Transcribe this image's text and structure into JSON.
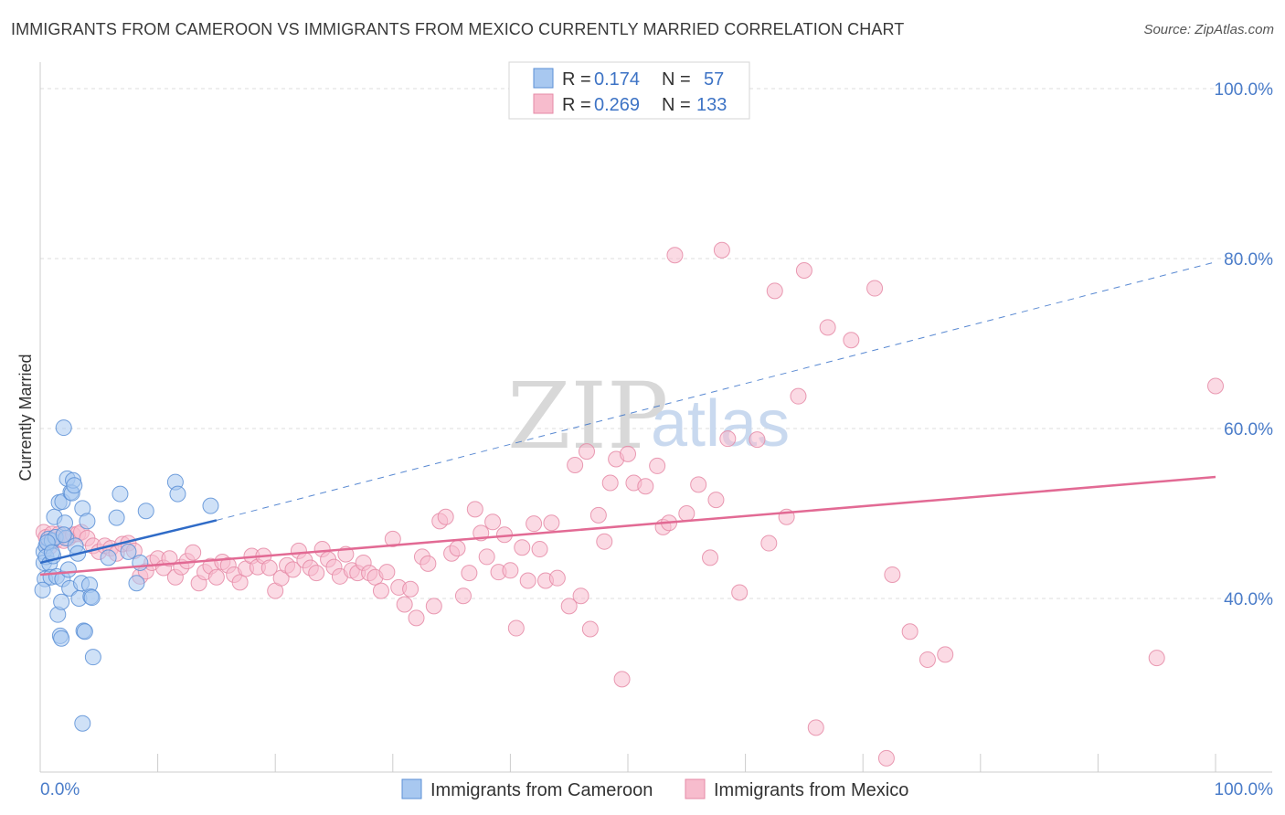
{
  "title": "IMMIGRANTS FROM CAMEROON VS IMMIGRANTS FROM MEXICO CURRENTLY MARRIED CORRELATION CHART",
  "source": "Source: ZipAtlas.com",
  "watermark": {
    "zip": "ZIP",
    "atlas": "atlas"
  },
  "legend": {
    "r_label": "R =",
    "n_label": "N =",
    "rows": [
      {
        "r": "0.174",
        "n": "57"
      },
      {
        "r": "0.269",
        "n": "133"
      }
    ]
  },
  "chart_data": {
    "type": "scatter",
    "ylabel": "Currently Married",
    "xlabel": "",
    "xlim": [
      0,
      100
    ],
    "ylim": [
      20,
      100
    ],
    "x_tick_labels": [
      "0.0%",
      "100.0%"
    ],
    "y_tick_labels": [
      "40.0%",
      "60.0%",
      "80.0%",
      "100.0%"
    ],
    "y_ticks": [
      40,
      60,
      80,
      100
    ],
    "grid": true,
    "legend_position": "top-center",
    "colors": {
      "cameroon_fill": "#a8c8f0",
      "cameroon_stroke": "#5b8fd6",
      "cameroon_line": "#2f6bc7",
      "mexico_fill": "#f7bccd",
      "mexico_stroke": "#e58aa6",
      "mexico_line": "#e26a94"
    },
    "series": [
      {
        "name": "Immigrants from Cameroon",
        "trend": {
          "x0": 0,
          "y0": 44.2,
          "x1": 15,
          "y1": 49.2,
          "dash_to": {
            "x": 100,
            "y": 79.6
          }
        },
        "points": [
          [
            0.3,
            45.5
          ],
          [
            0.3,
            44.2
          ],
          [
            0.4,
            42.3
          ],
          [
            0.5,
            46.2
          ],
          [
            0.5,
            44.9
          ],
          [
            0.7,
            47.0
          ],
          [
            0.8,
            44.1
          ],
          [
            0.9,
            42.5
          ],
          [
            1.0,
            46.8
          ],
          [
            1.1,
            45.0
          ],
          [
            1.2,
            49.6
          ],
          [
            1.3,
            47.2
          ],
          [
            1.4,
            42.6
          ],
          [
            1.5,
            38.1
          ],
          [
            1.6,
            51.3
          ],
          [
            1.7,
            35.6
          ],
          [
            1.8,
            35.3
          ],
          [
            1.8,
            39.6
          ],
          [
            1.9,
            42.3
          ],
          [
            1.9,
            51.4
          ],
          [
            2.0,
            60.1
          ],
          [
            2.1,
            48.9
          ],
          [
            2.2,
            47.1
          ],
          [
            2.3,
            54.1
          ],
          [
            2.4,
            43.4
          ],
          [
            2.5,
            41.2
          ],
          [
            2.6,
            52.5
          ],
          [
            2.7,
            52.4
          ],
          [
            2.8,
            53.9
          ],
          [
            2.9,
            53.3
          ],
          [
            3.0,
            46.2
          ],
          [
            3.2,
            45.3
          ],
          [
            3.3,
            40.0
          ],
          [
            3.5,
            41.8
          ],
          [
            3.6,
            50.6
          ],
          [
            3.7,
            36.2
          ],
          [
            3.8,
            36.1
          ],
          [
            4.0,
            49.1
          ],
          [
            4.2,
            41.6
          ],
          [
            4.3,
            40.2
          ],
          [
            4.4,
            40.1
          ],
          [
            4.5,
            33.1
          ],
          [
            3.6,
            25.3
          ],
          [
            5.8,
            44.8
          ],
          [
            6.5,
            49.5
          ],
          [
            6.8,
            52.3
          ],
          [
            7.5,
            45.5
          ],
          [
            8.2,
            41.8
          ],
          [
            8.5,
            44.2
          ],
          [
            9.0,
            50.3
          ],
          [
            11.5,
            53.7
          ],
          [
            11.7,
            52.3
          ],
          [
            14.5,
            50.9
          ],
          [
            0.2,
            41.0
          ],
          [
            0.6,
            46.6
          ],
          [
            1.0,
            45.4
          ],
          [
            2.0,
            47.5
          ]
        ]
      },
      {
        "name": "Immigrants from Mexico",
        "trend": {
          "x0": 0,
          "y0": 42.8,
          "x1": 100,
          "y1": 54.3
        },
        "points": [
          [
            0.3,
            47.8
          ],
          [
            0.5,
            47.2
          ],
          [
            0.8,
            46.1
          ],
          [
            1.0,
            47.6
          ],
          [
            1.4,
            46.9
          ],
          [
            1.6,
            47.6
          ],
          [
            2.0,
            46.8
          ],
          [
            2.4,
            47.1
          ],
          [
            2.8,
            47.5
          ],
          [
            3.2,
            47.6
          ],
          [
            3.5,
            47.8
          ],
          [
            4.0,
            47.1
          ],
          [
            4.5,
            46.2
          ],
          [
            5.0,
            45.5
          ],
          [
            5.5,
            46.2
          ],
          [
            6.0,
            45.9
          ],
          [
            6.5,
            45.3
          ],
          [
            7.0,
            46.4
          ],
          [
            7.5,
            46.5
          ],
          [
            8.0,
            45.6
          ],
          [
            8.5,
            42.6
          ],
          [
            9.0,
            43.2
          ],
          [
            9.5,
            44.2
          ],
          [
            10.0,
            44.7
          ],
          [
            10.5,
            43.6
          ],
          [
            11.0,
            44.7
          ],
          [
            11.5,
            42.5
          ],
          [
            12.0,
            43.7
          ],
          [
            12.5,
            44.4
          ],
          [
            13.0,
            45.4
          ],
          [
            13.5,
            41.8
          ],
          [
            14.0,
            43.1
          ],
          [
            14.5,
            43.8
          ],
          [
            15.0,
            42.5
          ],
          [
            15.5,
            44.3
          ],
          [
            16.0,
            43.9
          ],
          [
            16.5,
            42.8
          ],
          [
            17.0,
            41.9
          ],
          [
            17.5,
            43.5
          ],
          [
            18.0,
            45.0
          ],
          [
            18.5,
            43.7
          ],
          [
            19.0,
            45.0
          ],
          [
            19.5,
            43.6
          ],
          [
            20.0,
            40.9
          ],
          [
            20.5,
            42.4
          ],
          [
            21.0,
            43.9
          ],
          [
            21.5,
            43.4
          ],
          [
            22.0,
            45.6
          ],
          [
            22.5,
            44.5
          ],
          [
            23.0,
            43.6
          ],
          [
            23.5,
            43.0
          ],
          [
            24.0,
            45.8
          ],
          [
            24.5,
            44.6
          ],
          [
            25.0,
            43.7
          ],
          [
            25.5,
            42.6
          ],
          [
            26.0,
            45.2
          ],
          [
            26.5,
            43.3
          ],
          [
            27.0,
            43.0
          ],
          [
            27.5,
            44.2
          ],
          [
            28.0,
            43.0
          ],
          [
            28.5,
            42.5
          ],
          [
            29.0,
            40.9
          ],
          [
            29.5,
            43.1
          ],
          [
            30.0,
            47.0
          ],
          [
            30.5,
            41.3
          ],
          [
            31.0,
            39.3
          ],
          [
            31.5,
            41.1
          ],
          [
            32.0,
            37.7
          ],
          [
            32.5,
            44.9
          ],
          [
            33.0,
            44.1
          ],
          [
            33.5,
            39.1
          ],
          [
            34.0,
            49.1
          ],
          [
            34.5,
            49.6
          ],
          [
            35.0,
            45.3
          ],
          [
            35.5,
            45.9
          ],
          [
            36.0,
            40.3
          ],
          [
            36.5,
            43.0
          ],
          [
            37.0,
            50.5
          ],
          [
            37.5,
            47.7
          ],
          [
            38.0,
            44.9
          ],
          [
            38.5,
            49.0
          ],
          [
            39.0,
            43.1
          ],
          [
            39.5,
            47.5
          ],
          [
            40.0,
            43.3
          ],
          [
            40.5,
            36.5
          ],
          [
            41.0,
            46.0
          ],
          [
            41.5,
            42.1
          ],
          [
            42.0,
            48.8
          ],
          [
            42.5,
            45.8
          ],
          [
            43.0,
            42.1
          ],
          [
            43.5,
            48.9
          ],
          [
            44.0,
            42.4
          ],
          [
            45.0,
            39.1
          ],
          [
            45.5,
            55.7
          ],
          [
            46.0,
            40.3
          ],
          [
            46.5,
            57.3
          ],
          [
            46.8,
            36.4
          ],
          [
            47.5,
            49.8
          ],
          [
            48.0,
            46.7
          ],
          [
            48.5,
            53.6
          ],
          [
            49.0,
            56.4
          ],
          [
            49.5,
            30.5
          ],
          [
            50.0,
            57.0
          ],
          [
            50.5,
            53.6
          ],
          [
            51.5,
            53.2
          ],
          [
            52.5,
            55.6
          ],
          [
            53.0,
            48.4
          ],
          [
            53.5,
            48.9
          ],
          [
            54.0,
            80.4
          ],
          [
            55.0,
            50.0
          ],
          [
            56.0,
            53.4
          ],
          [
            57.0,
            44.8
          ],
          [
            57.5,
            51.6
          ],
          [
            58.0,
            81.0
          ],
          [
            58.5,
            58.8
          ],
          [
            59.5,
            40.7
          ],
          [
            61.0,
            58.7
          ],
          [
            62.0,
            46.5
          ],
          [
            62.5,
            76.2
          ],
          [
            63.5,
            49.6
          ],
          [
            64.5,
            63.8
          ],
          [
            65.0,
            78.6
          ],
          [
            66.0,
            24.8
          ],
          [
            67.0,
            71.9
          ],
          [
            69.0,
            70.4
          ],
          [
            71.0,
            76.5
          ],
          [
            72.0,
            21.2
          ],
          [
            72.5,
            42.8
          ],
          [
            74.0,
            36.1
          ],
          [
            75.5,
            32.8
          ],
          [
            77.0,
            33.4
          ],
          [
            95.0,
            33.0
          ],
          [
            100.0,
            65.0
          ]
        ]
      }
    ]
  }
}
